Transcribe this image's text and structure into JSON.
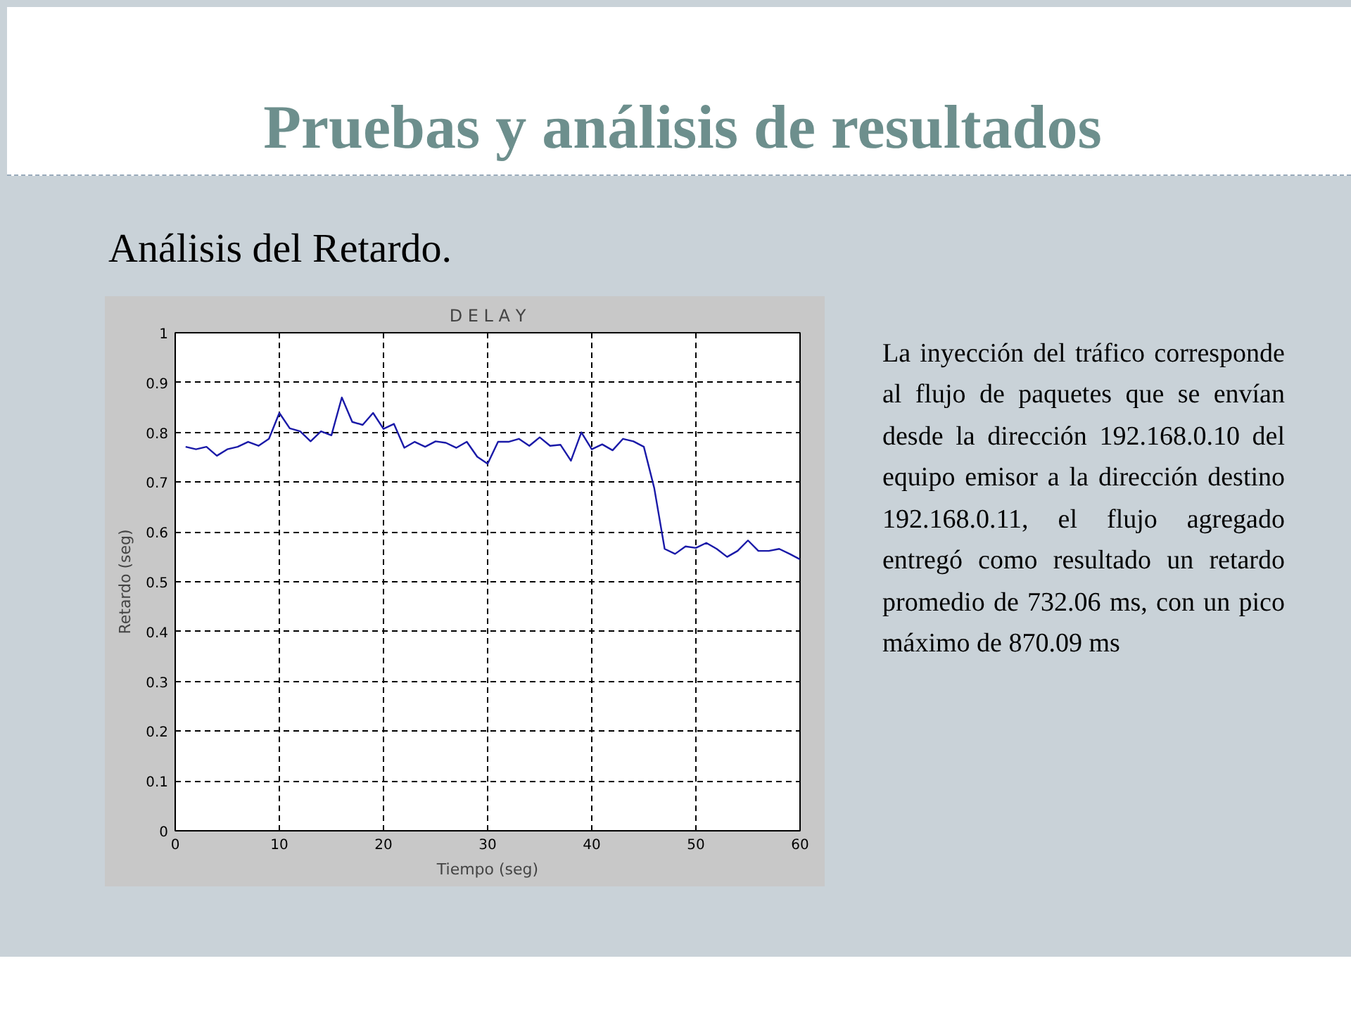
{
  "chart_data": {
    "type": "line",
    "title": "D E L A Y",
    "xlabel": "Tiempo (seg)",
    "ylabel": "Retardo (seg)",
    "annotations": [
      "Pruebas y análisis de resultados",
      "Análisis del Retardo.",
      "La inyección del tráfico corresponde al flujo de paquetes que se envían desde la dirección 192.168.0.10 del equipo emisor a la dirección destino 192.168.0.11, el flujo agregado entregó como resultado un retardo promedio de 732.06 ms, con un pico máximo de 870.09 ms"
    ],
    "x": [
      1,
      2,
      3,
      4,
      5,
      6,
      7,
      8,
      9,
      10,
      11,
      12,
      13,
      14,
      15,
      16,
      17,
      18,
      19,
      20,
      21,
      22,
      23,
      24,
      25,
      26,
      27,
      28,
      29,
      30,
      31,
      32,
      33,
      34,
      35,
      36,
      37,
      38,
      39,
      40,
      41,
      42,
      43,
      44,
      45,
      46,
      47,
      48,
      49,
      50,
      51,
      52,
      53,
      54,
      55,
      56,
      57,
      58,
      59,
      60
    ],
    "series": [
      {
        "color": "#1a1aa8",
        "values": [
          0.771,
          0.766,
          0.771,
          0.753,
          0.766,
          0.771,
          0.781,
          0.773,
          0.787,
          0.839,
          0.808,
          0.802,
          0.782,
          0.802,
          0.794,
          0.87,
          0.821,
          0.815,
          0.839,
          0.807,
          0.817,
          0.769,
          0.781,
          0.771,
          0.782,
          0.779,
          0.769,
          0.781,
          0.751,
          0.737,
          0.781,
          0.781,
          0.787,
          0.773,
          0.79,
          0.773,
          0.775,
          0.743,
          0.8,
          0.766,
          0.776,
          0.764,
          0.787,
          0.782,
          0.771,
          0.688,
          0.566,
          0.556,
          0.571,
          0.568,
          0.578,
          0.566,
          0.55,
          0.562,
          0.583,
          0.562,
          0.562,
          0.566,
          0.556,
          0.545
        ]
      }
    ],
    "xlim": [
      0,
      60
    ],
    "xticks": [
      0,
      10,
      20,
      30,
      40,
      50,
      60
    ],
    "ylim": [
      0,
      1
    ],
    "yticks": [
      0,
      0.1,
      0.2,
      0.3,
      0.4,
      0.5,
      0.6,
      0.7,
      0.8,
      0.9,
      1
    ],
    "grid": true,
    "line_style": "solid"
  }
}
